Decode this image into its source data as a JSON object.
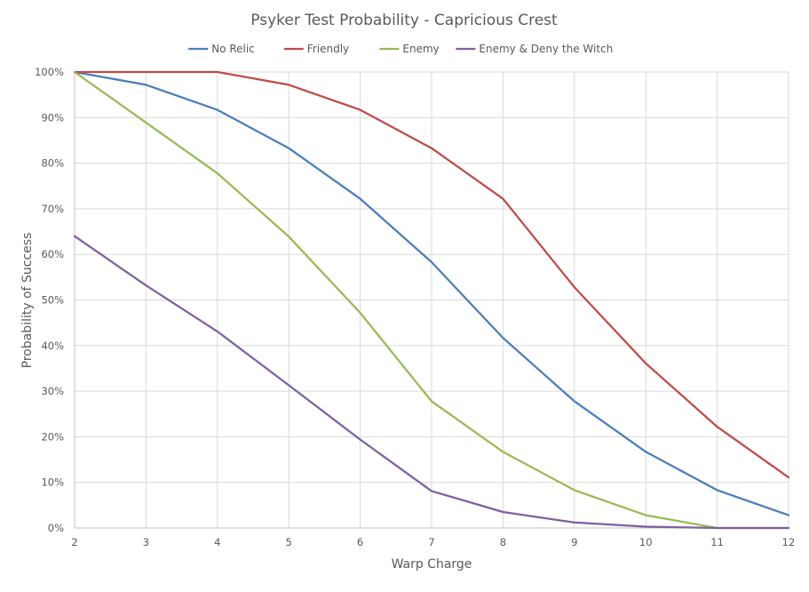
{
  "chart_data": {
    "type": "line",
    "title": "Psyker Test Probability - Capricious Crest",
    "xlabel": "Warp Charge",
    "ylabel": "Probability of Success",
    "x": [
      2,
      3,
      4,
      5,
      6,
      7,
      8,
      9,
      10,
      11,
      12
    ],
    "xlim": [
      2,
      12
    ],
    "ylim": [
      0,
      100
    ],
    "y_ticks": [
      "0%",
      "10%",
      "20%",
      "30%",
      "40%",
      "50%",
      "60%",
      "70%",
      "80%",
      "90%",
      "100%"
    ],
    "x_ticks": [
      "2",
      "3",
      "4",
      "5",
      "6",
      "7",
      "8",
      "9",
      "10",
      "11",
      "12"
    ],
    "grid": true,
    "legend_position": "top",
    "series": [
      {
        "name": "No Relic",
        "color": "#4a7ebb",
        "values": [
          100,
          97.2,
          91.7,
          83.3,
          72.2,
          58.3,
          41.7,
          27.8,
          16.7,
          8.3,
          2.8
        ]
      },
      {
        "name": "Friendly",
        "color": "#be4b48",
        "values": [
          100,
          100,
          100,
          97.2,
          91.7,
          83.3,
          72.2,
          52.8,
          36.1,
          22.2,
          11.1
        ]
      },
      {
        "name": "Enemy",
        "color": "#98b954",
        "values": [
          100,
          88.9,
          77.8,
          63.9,
          47.2,
          27.8,
          16.7,
          8.3,
          2.8,
          0,
          0
        ]
      },
      {
        "name": "Enemy & Deny the Witch",
        "color": "#7d60a0",
        "values": [
          64,
          53.2,
          43.1,
          31.3,
          19.4,
          8.1,
          3.5,
          1.2,
          0.3,
          0,
          0
        ]
      }
    ]
  }
}
